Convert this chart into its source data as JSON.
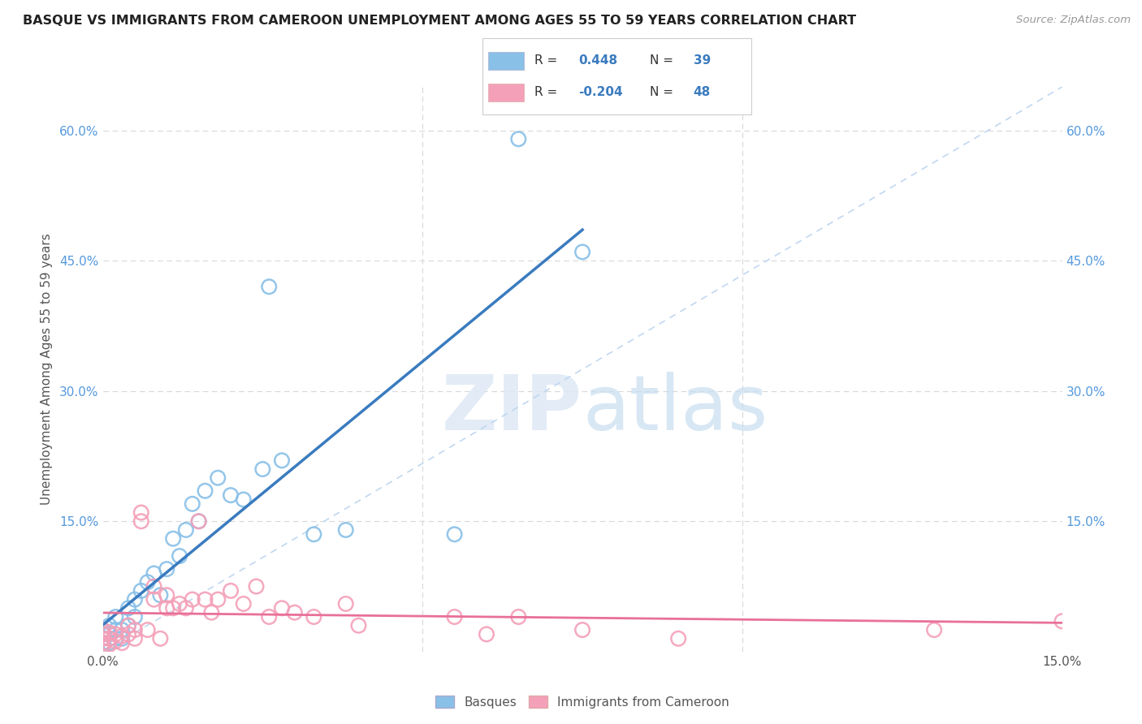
{
  "title": "BASQUE VS IMMIGRANTS FROM CAMEROON UNEMPLOYMENT AMONG AGES 55 TO 59 YEARS CORRELATION CHART",
  "source": "Source: ZipAtlas.com",
  "ylabel": "Unemployment Among Ages 55 to 59 years",
  "watermark": "ZIPatlas",
  "basque_R": 0.448,
  "basque_N": 39,
  "cameroon_R": -0.204,
  "cameroon_N": 48,
  "xlim": [
    0.0,
    0.15
  ],
  "ylim": [
    0.0,
    0.65
  ],
  "basque_color": "#89c0e8",
  "cameroon_color": "#f4a0b8",
  "basque_line_color": "#3a7bbf",
  "cameroon_line_color": "#e87099",
  "trend_line_color": "#c0d8f0",
  "basque_scatter_x": [
    0.0,
    0.0,
    0.0,
    0.0,
    0.0,
    0.001,
    0.001,
    0.001,
    0.002,
    0.002,
    0.002,
    0.003,
    0.003,
    0.004,
    0.004,
    0.005,
    0.005,
    0.006,
    0.007,
    0.008,
    0.009,
    0.01,
    0.011,
    0.012,
    0.013,
    0.014,
    0.015,
    0.016,
    0.018,
    0.02,
    0.022,
    0.025,
    0.026,
    0.028,
    0.033,
    0.038,
    0.055,
    0.065,
    0.075
  ],
  "basque_scatter_y": [
    0.005,
    0.01,
    0.015,
    0.02,
    0.025,
    0.01,
    0.02,
    0.03,
    0.015,
    0.025,
    0.04,
    0.015,
    0.025,
    0.03,
    0.05,
    0.04,
    0.06,
    0.07,
    0.08,
    0.09,
    0.065,
    0.095,
    0.13,
    0.11,
    0.14,
    0.17,
    0.15,
    0.185,
    0.2,
    0.18,
    0.175,
    0.21,
    0.42,
    0.22,
    0.135,
    0.14,
    0.135,
    0.59,
    0.46
  ],
  "cameroon_scatter_x": [
    0.0,
    0.0,
    0.0,
    0.0,
    0.0,
    0.001,
    0.001,
    0.001,
    0.002,
    0.002,
    0.003,
    0.003,
    0.004,
    0.004,
    0.005,
    0.005,
    0.006,
    0.006,
    0.007,
    0.008,
    0.008,
    0.009,
    0.01,
    0.01,
    0.011,
    0.012,
    0.013,
    0.014,
    0.015,
    0.016,
    0.017,
    0.018,
    0.02,
    0.022,
    0.024,
    0.026,
    0.028,
    0.03,
    0.033,
    0.038,
    0.04,
    0.055,
    0.06,
    0.065,
    0.075,
    0.09,
    0.13,
    0.15
  ],
  "cameroon_scatter_y": [
    0.005,
    0.01,
    0.015,
    0.02,
    0.025,
    0.008,
    0.015,
    0.022,
    0.012,
    0.02,
    0.01,
    0.018,
    0.02,
    0.03,
    0.015,
    0.025,
    0.15,
    0.16,
    0.025,
    0.06,
    0.075,
    0.015,
    0.05,
    0.065,
    0.05,
    0.055,
    0.05,
    0.06,
    0.15,
    0.06,
    0.045,
    0.06,
    0.07,
    0.055,
    0.075,
    0.04,
    0.05,
    0.045,
    0.04,
    0.055,
    0.03,
    0.04,
    0.02,
    0.04,
    0.025,
    0.015,
    0.025,
    0.035
  ]
}
